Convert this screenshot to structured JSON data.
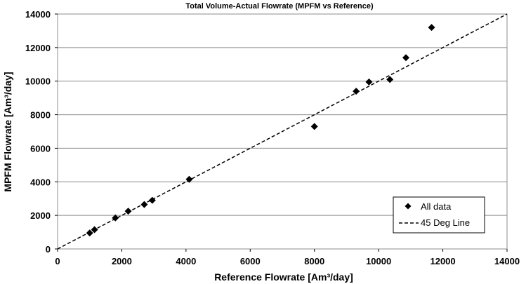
{
  "chart_data": {
    "type": "scatter",
    "title": "Total Volume-Actual Flowrate (MPFM vs Reference)",
    "xlabel": "Reference Flowrate [Am³/day]",
    "ylabel": "MPFM Flowrate [Am³/day]",
    "xlim": [
      0,
      14000
    ],
    "ylim": [
      0,
      14000
    ],
    "xticks": [
      0,
      2000,
      4000,
      6000,
      8000,
      10000,
      12000,
      14000
    ],
    "yticks": [
      0,
      2000,
      4000,
      6000,
      8000,
      10000,
      12000,
      14000
    ],
    "grid": "horizontal",
    "legend_position": "bottom-right",
    "series": [
      {
        "name": "All data",
        "kind": "scatter",
        "marker": "diamond",
        "color": "#000000",
        "x": [
          1000,
          1150,
          1800,
          2200,
          2700,
          2950,
          4100,
          8000,
          9300,
          9700,
          10350,
          10850,
          11650
        ],
        "y": [
          950,
          1150,
          1850,
          2250,
          2650,
          2900,
          4150,
          7300,
          9400,
          9950,
          10100,
          11400,
          13200
        ]
      },
      {
        "name": "45 Deg Line",
        "kind": "line",
        "style": "dashed",
        "color": "#000000",
        "x": [
          0,
          14000
        ],
        "y": [
          0,
          14000
        ]
      }
    ]
  }
}
